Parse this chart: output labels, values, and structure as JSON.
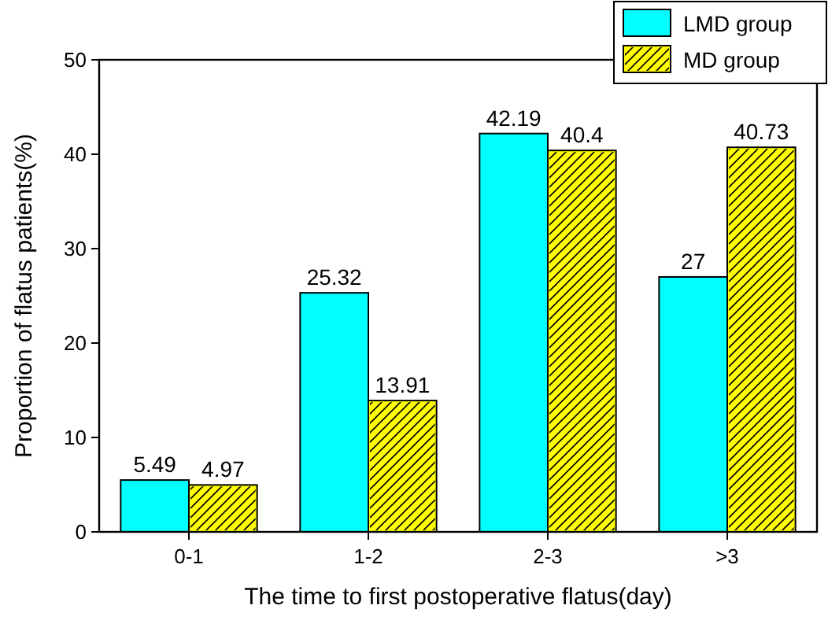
{
  "chart_data": {
    "type": "bar",
    "xlabel": "The time to first postoperative flatus(day)",
    "ylabel": "Proportion of flatus patients(%)",
    "categories": [
      "0-1",
      "1-2",
      "2-3",
      ">3"
    ],
    "series": [
      {
        "name": "LMD group",
        "color": "#00ffff",
        "values": [
          5.49,
          25.32,
          42.19,
          27
        ]
      },
      {
        "name": "MD group",
        "color": "#ffff00",
        "values": [
          4.97,
          13.91,
          40.4,
          40.73
        ]
      }
    ],
    "ylim": [
      0,
      50
    ],
    "yticks": [
      0,
      10,
      20,
      30,
      40,
      50
    ],
    "data_labels": true,
    "legend": "top right",
    "grid": false
  }
}
